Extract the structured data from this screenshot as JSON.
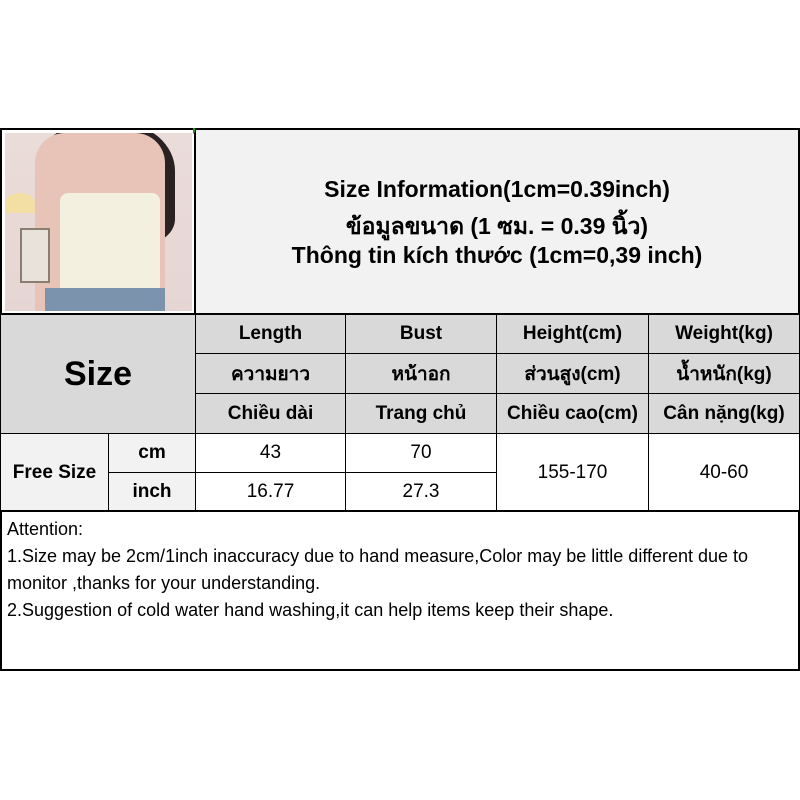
{
  "title": {
    "line1": "Size Information(1cm=0.39inch)",
    "line2": "ข้อมูลขนาด (1 ซม. = 0.39 นิ้ว)",
    "line3": "Thông tin kích thước (1cm=0,39 inch)"
  },
  "size_label": "Size",
  "columns": [
    {
      "en": "Length",
      "th": "ความยาว",
      "vi": "Chiều dài"
    },
    {
      "en": "Bust",
      "th": "หน้าอก",
      "vi": "Trang chủ"
    },
    {
      "en": "Height(cm)",
      "th": "ส่วนสูง(cm)",
      "vi": "Chiều cao(cm)"
    },
    {
      "en": "Weight(kg)",
      "th": "น้ำหนัก(kg)",
      "vi": "Cân nặng(kg)"
    }
  ],
  "rows": {
    "size_name": "Free Size",
    "cm": {
      "unit": "cm",
      "length": "43",
      "bust": "70"
    },
    "inch": {
      "unit": "inch",
      "length": "16.77",
      "bust": "27.3"
    },
    "height": "155-170",
    "weight": "40-60"
  },
  "attention": {
    "heading": "Attention:",
    "line1": "1.Size may be 2cm/1inch inaccuracy due to hand measure,Color may be little different due to monitor ,thanks for your understanding.",
    "line2": "2.Suggestion of cold water hand washing,it can help items keep their shape."
  }
}
